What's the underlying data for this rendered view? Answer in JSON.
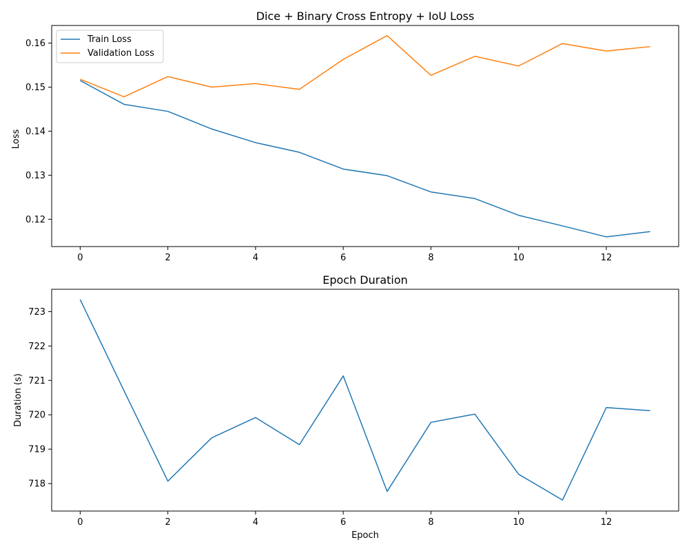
{
  "chart_data": [
    {
      "type": "line",
      "title": "Dice + Binary Cross Entropy + IoU Loss",
      "xlabel": "",
      "ylabel": "Loss",
      "xlim": [
        -0.65,
        13.65
      ],
      "ylim": [
        0.1138,
        0.164
      ],
      "xticks": [
        0,
        2,
        4,
        6,
        8,
        10,
        12
      ],
      "yticks": [
        0.12,
        0.13,
        0.14,
        0.15,
        0.16
      ],
      "yticks_labels": [
        "0.12",
        "0.13",
        "0.14",
        "0.15",
        "0.16"
      ],
      "grid": false,
      "legend": "upper-left",
      "x": [
        0,
        1,
        2,
        3,
        4,
        5,
        6,
        7,
        8,
        9,
        10,
        11,
        12,
        13
      ],
      "series": [
        {
          "name": "Train Loss",
          "color": "#1f77b4",
          "values": [
            0.1515,
            0.1461,
            0.1445,
            0.1405,
            0.1374,
            0.1352,
            0.1314,
            0.1299,
            0.1262,
            0.1247,
            0.1209,
            0.1185,
            0.116,
            0.1172
          ]
        },
        {
          "name": "Validation Loss",
          "color": "#ff7f0e",
          "values": [
            0.1518,
            0.1478,
            0.1524,
            0.15,
            0.1508,
            0.1495,
            0.1563,
            0.1617,
            0.1527,
            0.157,
            0.1548,
            0.1599,
            0.1582,
            0.1592
          ]
        }
      ]
    },
    {
      "type": "line",
      "title": "Epoch Duration",
      "xlabel": "Epoch",
      "ylabel": "Duration (s)",
      "xlim": [
        -0.65,
        13.65
      ],
      "ylim": [
        717.2,
        723.65
      ],
      "xticks": [
        0,
        2,
        4,
        6,
        8,
        10,
        12
      ],
      "yticks": [
        718,
        719,
        720,
        721,
        722,
        723
      ],
      "yticks_labels": [
        "718",
        "719",
        "720",
        "721",
        "722",
        "723"
      ],
      "grid": false,
      "legend": "none",
      "x": [
        0,
        1,
        2,
        3,
        4,
        5,
        6,
        7,
        8,
        9,
        10,
        11,
        12,
        13
      ],
      "series": [
        {
          "color": "#1f77b4",
          "values": [
            723.35,
            720.7,
            718.07,
            719.33,
            719.92,
            719.13,
            721.13,
            717.77,
            719.78,
            720.02,
            718.27,
            717.52,
            720.21,
            720.12
          ]
        }
      ]
    }
  ]
}
